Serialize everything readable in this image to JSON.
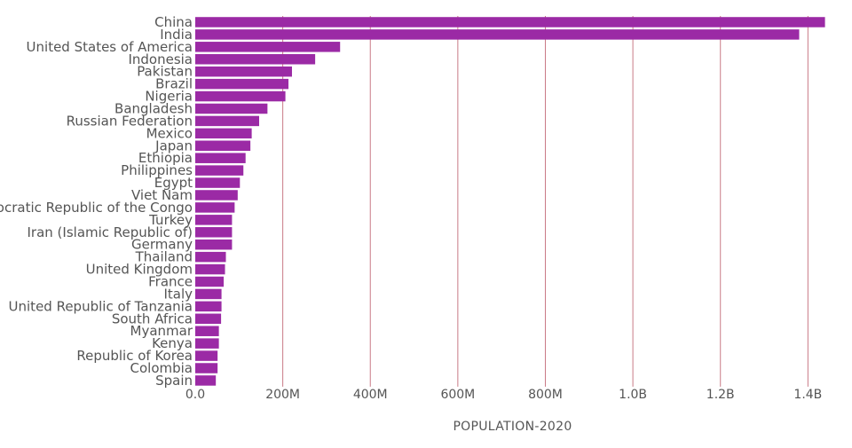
{
  "chart_data": {
    "type": "bar",
    "orientation": "horizontal",
    "xlabel": "POPULATION-2020",
    "ylabel": "",
    "xlim": [
      0,
      1450000000
    ],
    "grid": "vertical",
    "x_ticks": [
      {
        "value": 0,
        "label": "0.0"
      },
      {
        "value": 200000000,
        "label": "200M"
      },
      {
        "value": 400000000,
        "label": "400M"
      },
      {
        "value": 600000000,
        "label": "600M"
      },
      {
        "value": 800000000,
        "label": "800M"
      },
      {
        "value": 1000000000,
        "label": "1.0B"
      },
      {
        "value": 1200000000,
        "label": "1.2B"
      },
      {
        "value": 1400000000,
        "label": "1.4B"
      }
    ],
    "bar_color": "#9b2aa5",
    "grid_color": "#c97a86",
    "categories": [
      "China",
      "India",
      "United States of America",
      "Indonesia",
      "Pakistan",
      "Brazil",
      "Nigeria",
      "Bangladesh",
      "Russian Federation",
      "Mexico",
      "Japan",
      "Ethiopia",
      "Philippines",
      "Egypt",
      "Viet Nam",
      "Democratic Republic of the Congo",
      "Turkey",
      "Iran (Islamic Republic of)",
      "Germany",
      "Thailand",
      "United Kingdom",
      "France",
      "Italy",
      "United Republic of Tanzania",
      "South Africa",
      "Myanmar",
      "Kenya",
      "Republic of Korea",
      "Colombia",
      "Spain"
    ],
    "values": [
      1439000000,
      1380000000,
      331000000,
      274000000,
      221000000,
      213000000,
      206000000,
      165000000,
      146000000,
      129000000,
      126000000,
      115000000,
      110000000,
      102000000,
      97000000,
      90000000,
      84000000,
      84000000,
      84000000,
      70000000,
      68000000,
      65000000,
      60000000,
      60000000,
      59000000,
      54000000,
      54000000,
      51000000,
      51000000,
      47000000
    ]
  }
}
